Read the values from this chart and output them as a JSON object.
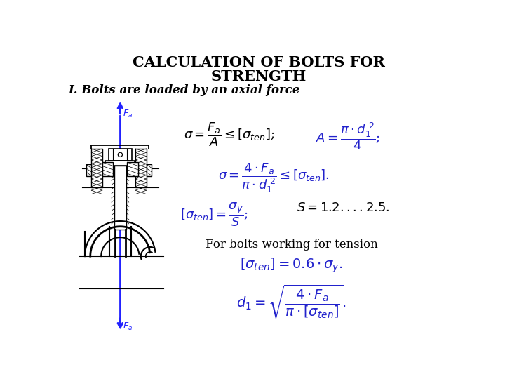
{
  "title_line1": "CALCULATION OF BOLTS FOR",
  "title_line2": "STRENGTH",
  "subtitle": "I. Bolts are loaded by an axial force",
  "bg_color": "#ffffff",
  "title_color": "#000000",
  "subtitle_color": "#000000",
  "formula_blue": "#2222cc",
  "black_color": "#000000",
  "blue_arrow": "#2222ff",
  "title_fontsize": 15,
  "subtitle_fontsize": 12
}
